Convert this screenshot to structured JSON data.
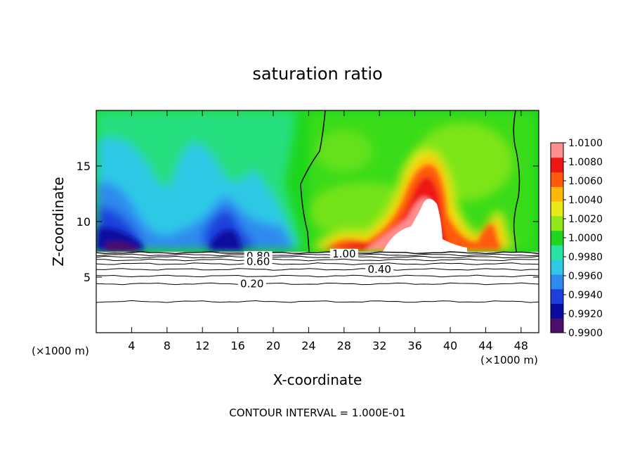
{
  "chart_data": {
    "type": "heatmap",
    "title": "saturation ratio",
    "xlabel": "X-coordinate",
    "ylabel": "Z-coordinate",
    "x_unit_left": "(×1000 m)",
    "x_unit_right": "(×1000 m)",
    "footer": "CONTOUR INTERVAL = 1.000E-01",
    "xlim": [
      0,
      50
    ],
    "ylim": [
      0,
      20
    ],
    "x_ticks": [
      4,
      8,
      12,
      16,
      20,
      24,
      28,
      32,
      36,
      40,
      44,
      48
    ],
    "y_ticks": [
      5,
      10,
      15
    ],
    "colorbar": {
      "min": 0.99,
      "max": 1.01,
      "levels": [
        "1.0100",
        "1.0080",
        "1.0060",
        "1.0040",
        "1.0020",
        "1.0000",
        "0.9980",
        "0.9960",
        "0.9940",
        "0.9920",
        "0.9900"
      ],
      "colors": [
        "#4b0f6b",
        "#0a0aa0",
        "#1f3fdc",
        "#2f8af0",
        "#2fc9e6",
        "#27e3a6",
        "#1ed61e",
        "#8fe81a",
        "#e8ea16",
        "#ffb70a",
        "#ff5a0a",
        "#ee1515",
        "#ff8f8f"
      ]
    },
    "contour_labels": [
      {
        "text": "0.80",
        "x": 18.3,
        "z": 6.9
      },
      {
        "text": "0.60",
        "x": 18.3,
        "z": 6.4
      },
      {
        "text": "0.40",
        "x": 32.0,
        "z": 5.7
      },
      {
        "text": "0.20",
        "x": 17.6,
        "z": 4.4
      },
      {
        "text": "1.00",
        "x": 28.0,
        "z": 7.1
      }
    ],
    "contours_z": [
      7.2,
      7.0,
      6.8,
      6.55,
      6.2,
      5.7,
      5.1,
      4.4,
      2.8
    ]
  }
}
